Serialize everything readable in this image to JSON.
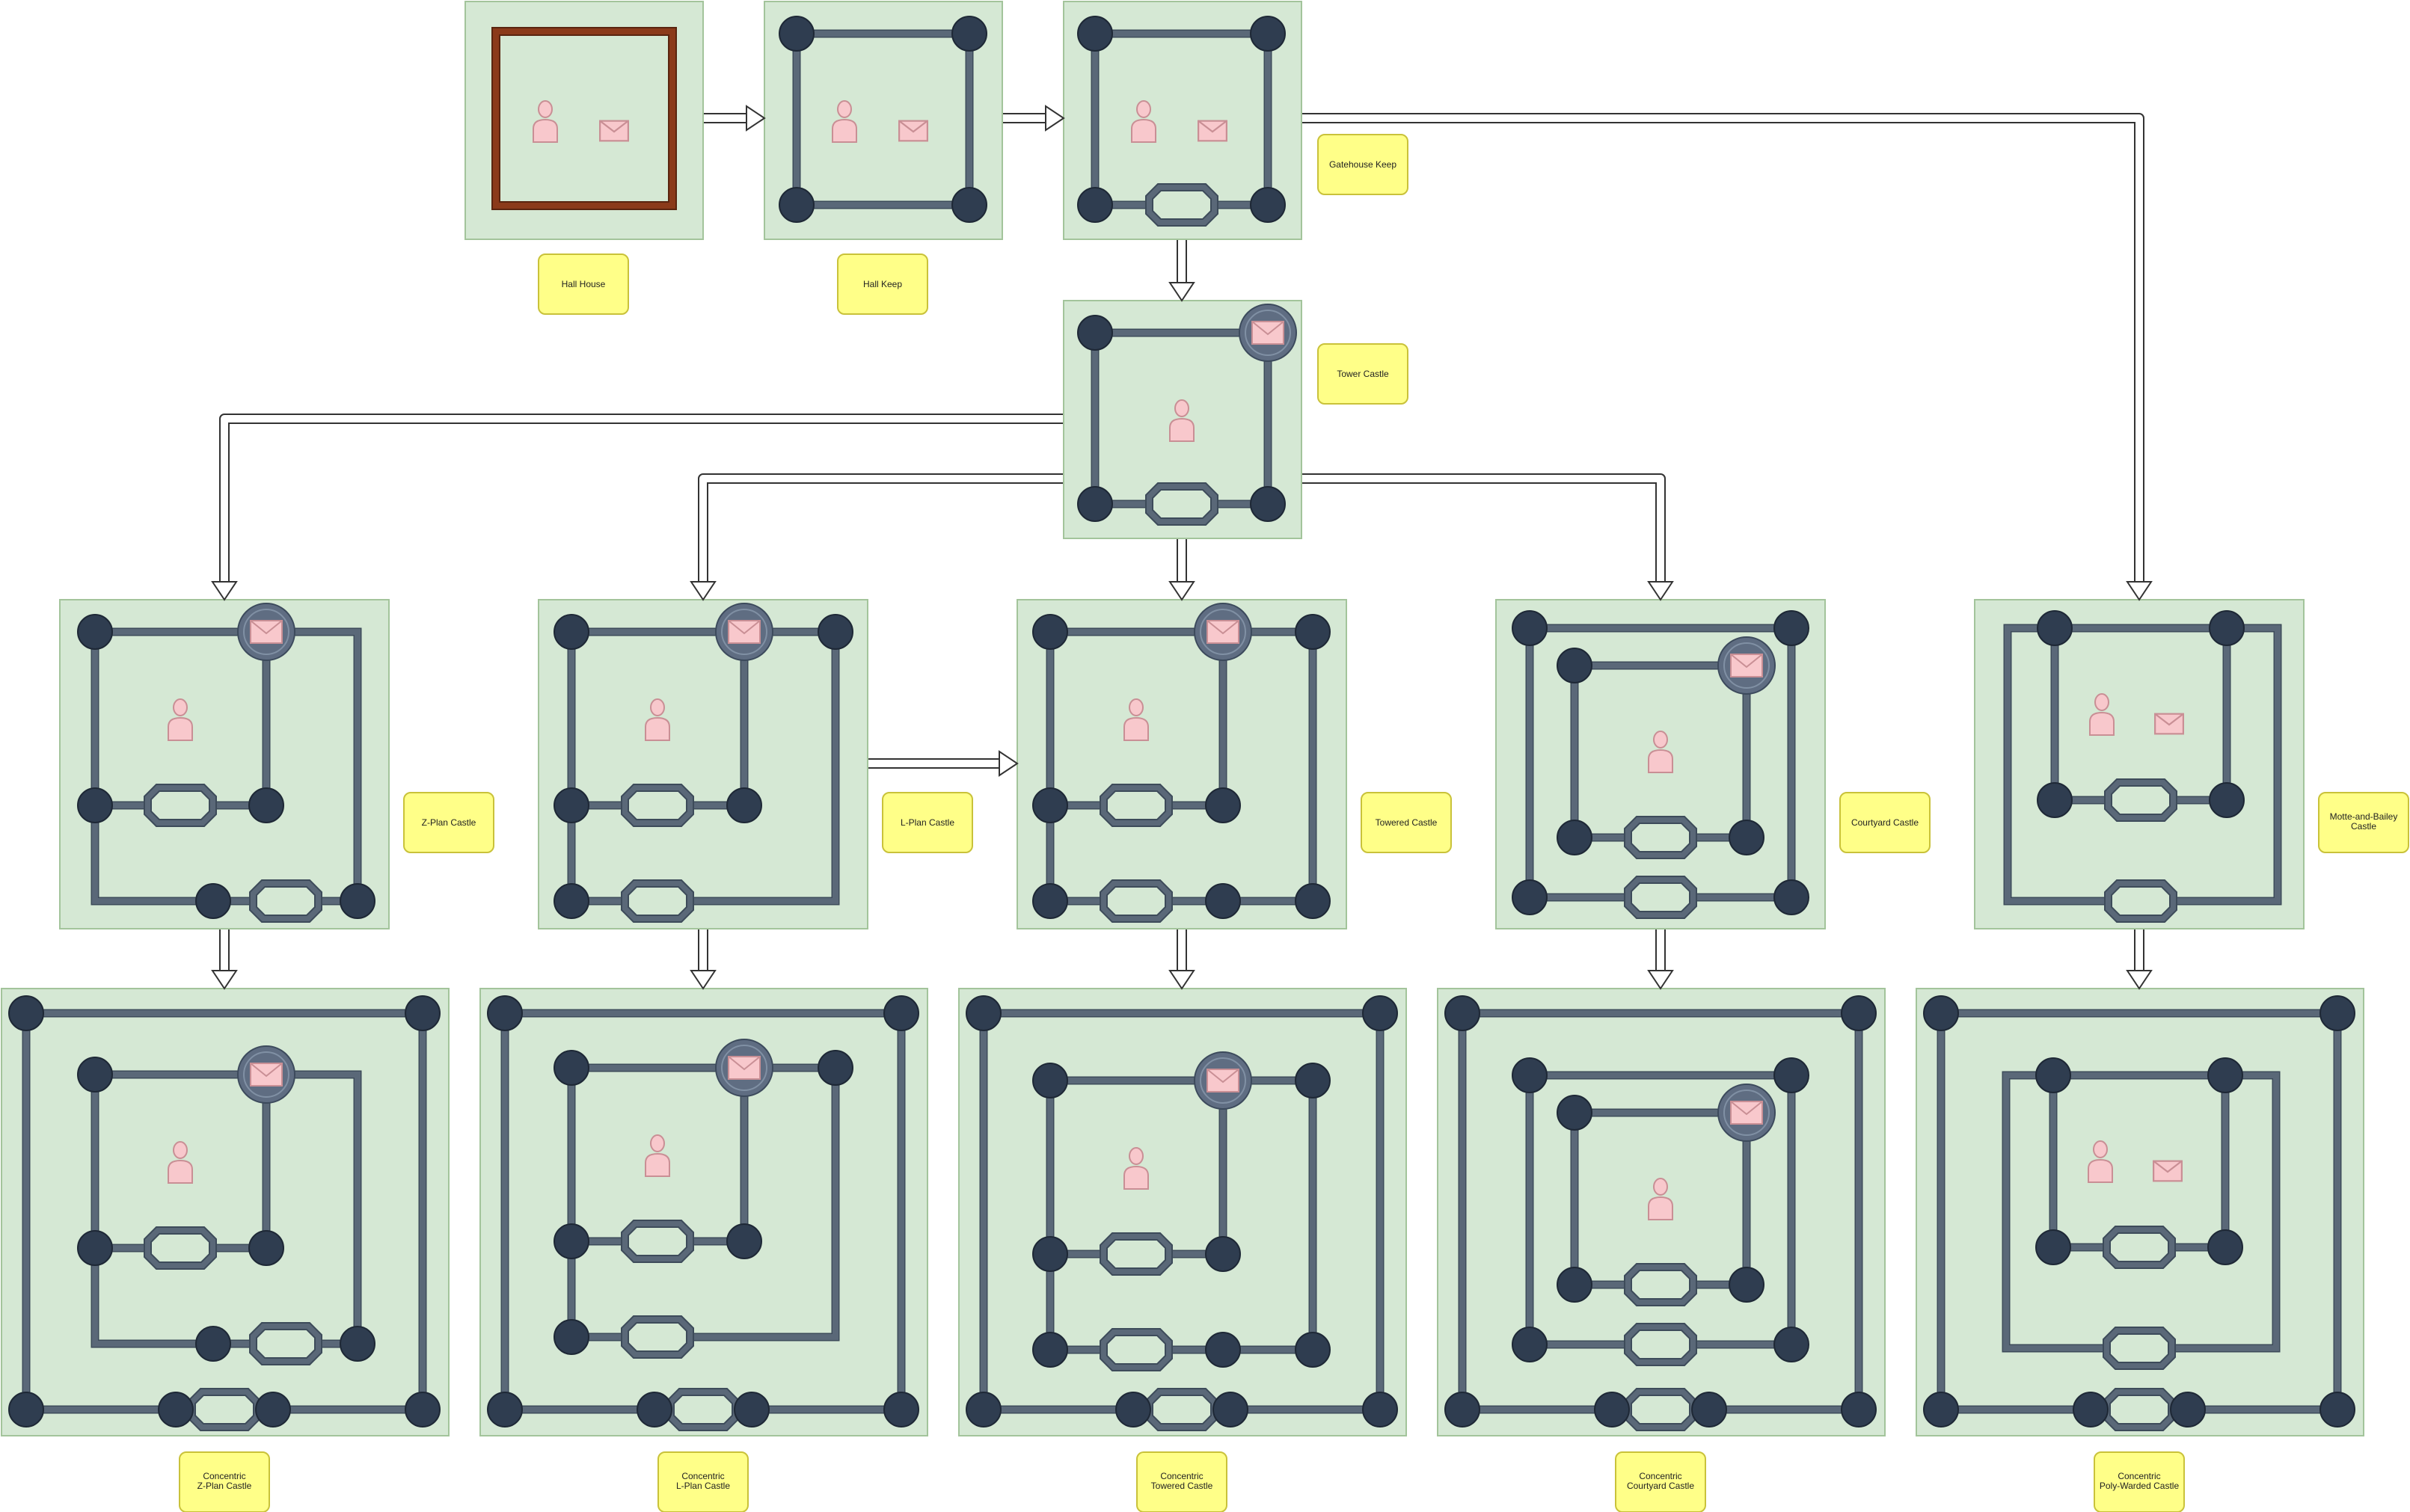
{
  "colors": {
    "panel_fill": "#d5e8d4",
    "panel_stroke": "#a3c49b",
    "wall": "#5a6878",
    "wall_edge": "#3d4b5a",
    "tower": "#2f3d50",
    "gate_fill": "#d5e8d4",
    "keep_ring": "#5f6d82",
    "icon_fill": "#f8c8cc",
    "icon_stroke": "#c98f95",
    "label_fill": "#ffff88",
    "label_stroke": "#c9c23a",
    "brown": "#8b3a1a",
    "arrow_stroke": "#333333"
  },
  "labels": {
    "hall_house": "Hall House",
    "hall_keep": "Hall Keep",
    "gatehouse_keep": "Gatehouse Keep",
    "tower_castle": "Tower Castle",
    "z_plan": "Z-Plan Castle",
    "l_plan": "L-Plan Castle",
    "towered": "Towered Castle",
    "courtyard": "Courtyard Castle",
    "motte_l1": "Motte-and-Bailey",
    "motte_l2": "Castle",
    "conc_z_l1": "Concentric",
    "conc_z_l2": "Z-Plan Castle",
    "conc_l_l1": "Concentric",
    "conc_l_l2": "L-Plan Castle",
    "conc_t_l1": "Concentric",
    "conc_t_l2": "Towered Castle",
    "conc_c_l1": "Concentric",
    "conc_c_l2": "Courtyard Castle",
    "conc_p_l1": "Concentric",
    "conc_p_l2": "Poly-Warded Castle"
  }
}
